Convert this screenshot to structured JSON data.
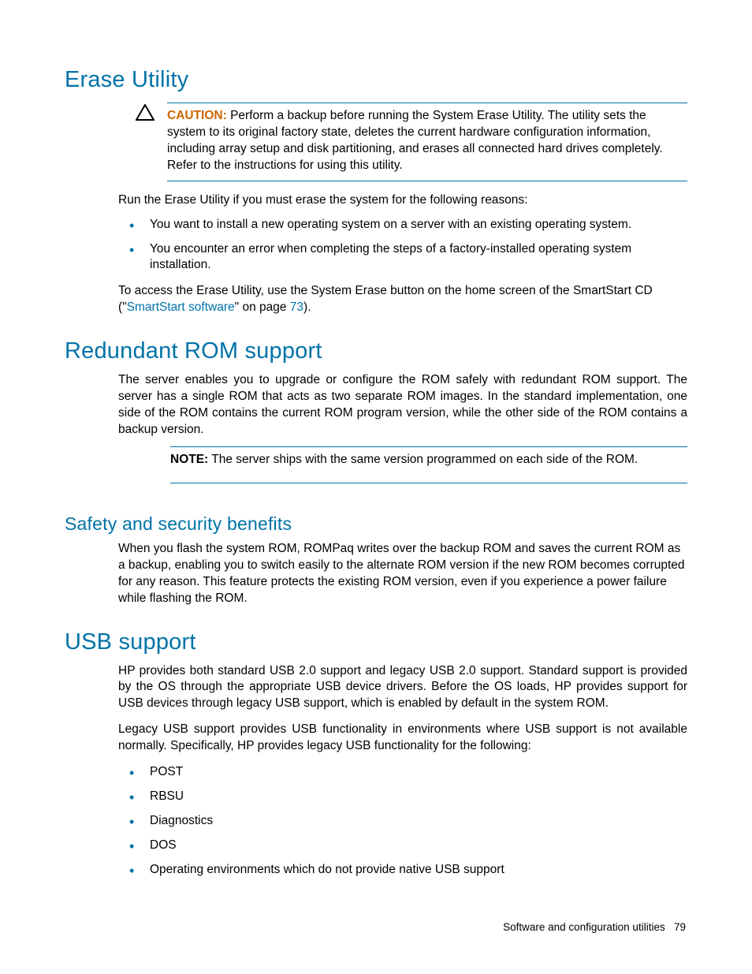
{
  "colors": {
    "heading": "#0073a8",
    "caution": "#cc6600",
    "link": "#0073a8",
    "bullet": "#0073a8",
    "border": "#0073a8",
    "text": "#000000"
  },
  "fonts": {
    "h1_size": 29,
    "h2_size": 23,
    "body_size": 15.5,
    "caution_label_size": 15.5,
    "footer_size": 13.5
  },
  "sections": {
    "erase": {
      "title": "Erase Utility",
      "caution_label": "CAUTION:",
      "caution_body": "Perform a backup before running the System Erase Utility. The utility sets the system to its original factory state, deletes the current hardware configuration information, including array setup and disk partitioning, and erases all connected hard drives completely. Refer to the instructions for using this utility.",
      "intro": "Run the Erase Utility if you must erase the system for the following reasons:",
      "bullets": [
        "You want to install a new operating system on a server with an existing operating system.",
        "You encounter an error when completing the steps of a factory-installed operating system installation."
      ],
      "access_pre": "To access the Erase Utility, use the System Erase button on the home screen of the SmartStart CD (\"",
      "access_link": "SmartStart software",
      "access_mid": "\" on page ",
      "access_page": "73",
      "access_post": ")."
    },
    "redundant": {
      "title": "Redundant ROM support",
      "body": "The server enables you to upgrade or configure the ROM safely with redundant ROM support. The server has a single ROM that acts as two separate ROM images. In the standard implementation, one side of the ROM contains the current ROM program version, while the other side of the ROM contains a backup version.",
      "note_label": "NOTE:",
      "note_body": "The server ships with the same version programmed on each side of the ROM."
    },
    "safety": {
      "title": "Safety and security benefits",
      "body": "When you flash the system ROM, ROMPaq writes over the backup ROM and saves the current ROM as a backup, enabling you to switch easily to the alternate ROM version if the new ROM becomes corrupted for any reason. This feature protects the existing ROM version, even if you experience a power failure while flashing the ROM."
    },
    "usb": {
      "title": "USB support",
      "para1": "HP provides both standard USB 2.0 support and legacy USB 2.0 support. Standard support is provided by the OS through the appropriate USB device drivers. Before the OS loads, HP provides support for USB devices through legacy USB support, which is enabled by default in the system ROM.",
      "para2": "Legacy USB support provides USB functionality in environments where USB support is not available normally. Specifically, HP provides legacy USB functionality for the following:",
      "bullets": [
        "POST",
        "RBSU",
        "Diagnostics",
        "DOS",
        "Operating environments which do not provide native USB support"
      ]
    }
  },
  "footer": {
    "text": "Software and configuration utilities",
    "page": "79"
  }
}
